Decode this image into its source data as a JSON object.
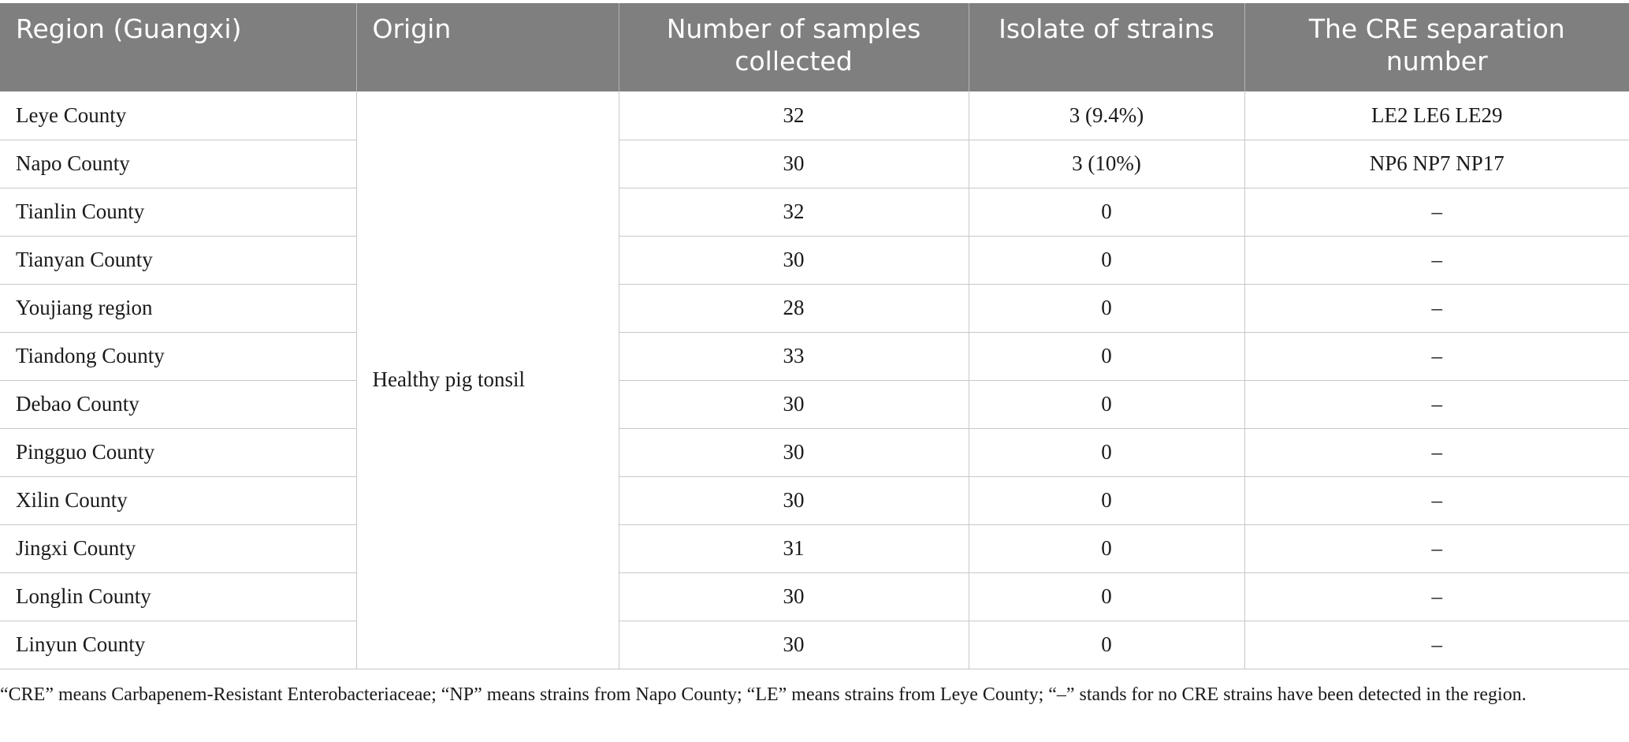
{
  "table": {
    "headers": [
      "Region (Guangxi)",
      "Origin",
      "Number of samples collected",
      "Isolate of strains",
      "The CRE separation number"
    ],
    "origin": "Healthy pig tonsil",
    "rows": [
      {
        "region": "Leye County",
        "samples": "32",
        "isolates": "3 (9.4%)",
        "cre": "LE2 LE6 LE29"
      },
      {
        "region": "Napo County",
        "samples": "30",
        "isolates": "3 (10%)",
        "cre": "NP6 NP7 NP17"
      },
      {
        "region": "Tianlin County",
        "samples": "32",
        "isolates": "0",
        "cre": "–"
      },
      {
        "region": "Tianyan County",
        "samples": "30",
        "isolates": "0",
        "cre": "–"
      },
      {
        "region": "Youjiang region",
        "samples": "28",
        "isolates": "0",
        "cre": "–"
      },
      {
        "region": "Tiandong County",
        "samples": "33",
        "isolates": "0",
        "cre": "–"
      },
      {
        "region": "Debao County",
        "samples": "30",
        "isolates": "0",
        "cre": "–"
      },
      {
        "region": "Pingguo County",
        "samples": "30",
        "isolates": "0",
        "cre": "–"
      },
      {
        "region": "Xilin County",
        "samples": "30",
        "isolates": "0",
        "cre": "–"
      },
      {
        "region": "Jingxi County",
        "samples": "31",
        "isolates": "0",
        "cre": "–"
      },
      {
        "region": "Longlin County",
        "samples": "30",
        "isolates": "0",
        "cre": "–"
      },
      {
        "region": "Linyun County",
        "samples": "30",
        "isolates": "0",
        "cre": "–"
      }
    ]
  },
  "footnote": "“CRE” means Carbapenem-Resistant Enterobacteriaceae; “NP” means strains from Napo County; “LE” means strains from Leye County; “–” stands for no CRE strains have been detected in the region."
}
